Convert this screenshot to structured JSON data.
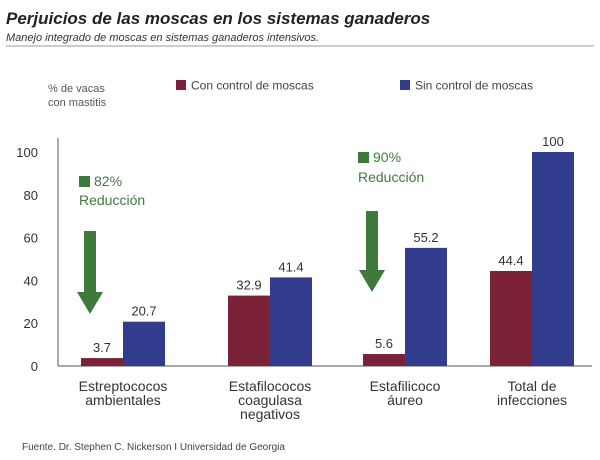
{
  "header": {
    "title": "Perjuicios de las moscas en los sistemas ganaderos",
    "subtitle": "Manejo integrado de moscas en sistemas ganaderos intensivos."
  },
  "source": "Fuente. Dr. Stephen  C. Nickerson I Universidad de Georgia",
  "colors": {
    "con": "#7b2238",
    "sin": "#323c8c",
    "arrow": "#3f7a3c",
    "axis": "#555555",
    "title": "#222222"
  },
  "chart_data": {
    "type": "bar",
    "title": "Perjuicios de las moscas en los sistemas ganaderos",
    "ylabel_lines": [
      "% de vacas",
      "con mastitis"
    ],
    "xlabel": "",
    "ylim": [
      0,
      100
    ],
    "yticks": [
      0,
      20,
      40,
      60,
      80,
      100
    ],
    "grid": false,
    "legend_position": "top",
    "categories": [
      [
        "Estreptococos",
        "ambientales"
      ],
      [
        "Estafilococos",
        "coagulasa",
        "negativos"
      ],
      [
        "Estafilicoco",
        "áureo"
      ],
      [
        "Total de",
        "infecciones"
      ]
    ],
    "series": [
      {
        "name": "Con control de moscas",
        "color_key": "con",
        "values": [
          3.7,
          32.9,
          5.6,
          44.4
        ]
      },
      {
        "name": "Sin control de moscas",
        "color_key": "sin",
        "values": [
          20.7,
          41.4,
          55.2,
          100
        ]
      }
    ],
    "annotations": [
      {
        "category_index": 0,
        "percent": "82%",
        "text": "Reducción"
      },
      {
        "category_index": 2,
        "percent": "90%",
        "text": "Reducción"
      }
    ]
  }
}
